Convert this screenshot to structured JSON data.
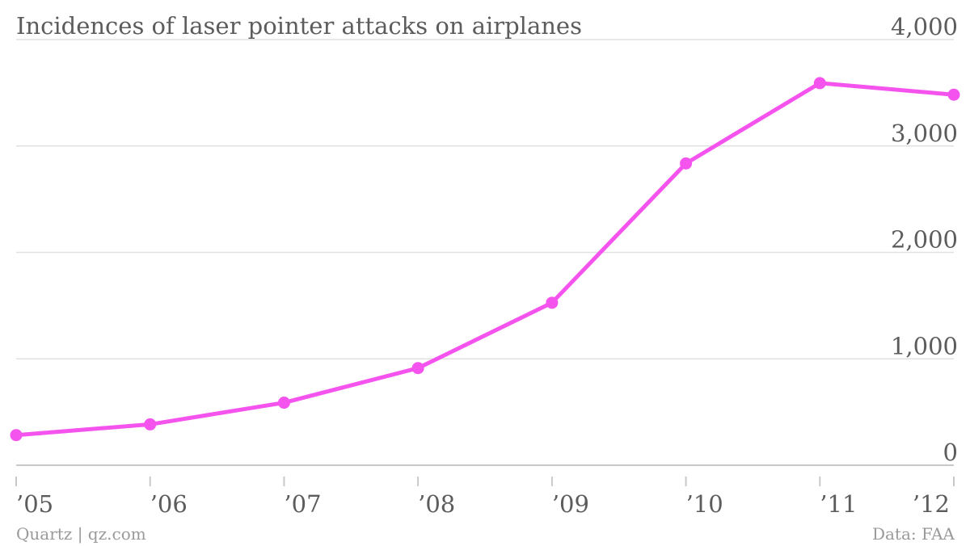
{
  "chart_data": {
    "type": "line",
    "title": "Incidences of laser pointer attacks on airplanes",
    "categories": [
      "’05",
      "’06",
      "’07",
      "’08",
      "’09",
      "’10",
      "’11",
      "’12"
    ],
    "series": [
      {
        "values": [
          283,
          384,
          588,
          913,
          1527,
          2836,
          3591,
          3482
        ],
        "color": "#f553ee"
      }
    ],
    "ylim": [
      0,
      4000
    ],
    "yticks": [
      0,
      1000,
      2000,
      3000,
      4000
    ],
    "ytick_labels": [
      "0",
      "1,000",
      "2,000",
      "3,000",
      "4,000"
    ],
    "grid": true,
    "y_axis_position": "right"
  },
  "footer": {
    "source_left": "Quartz | qz.com",
    "source_right": "Data: FAA"
  }
}
